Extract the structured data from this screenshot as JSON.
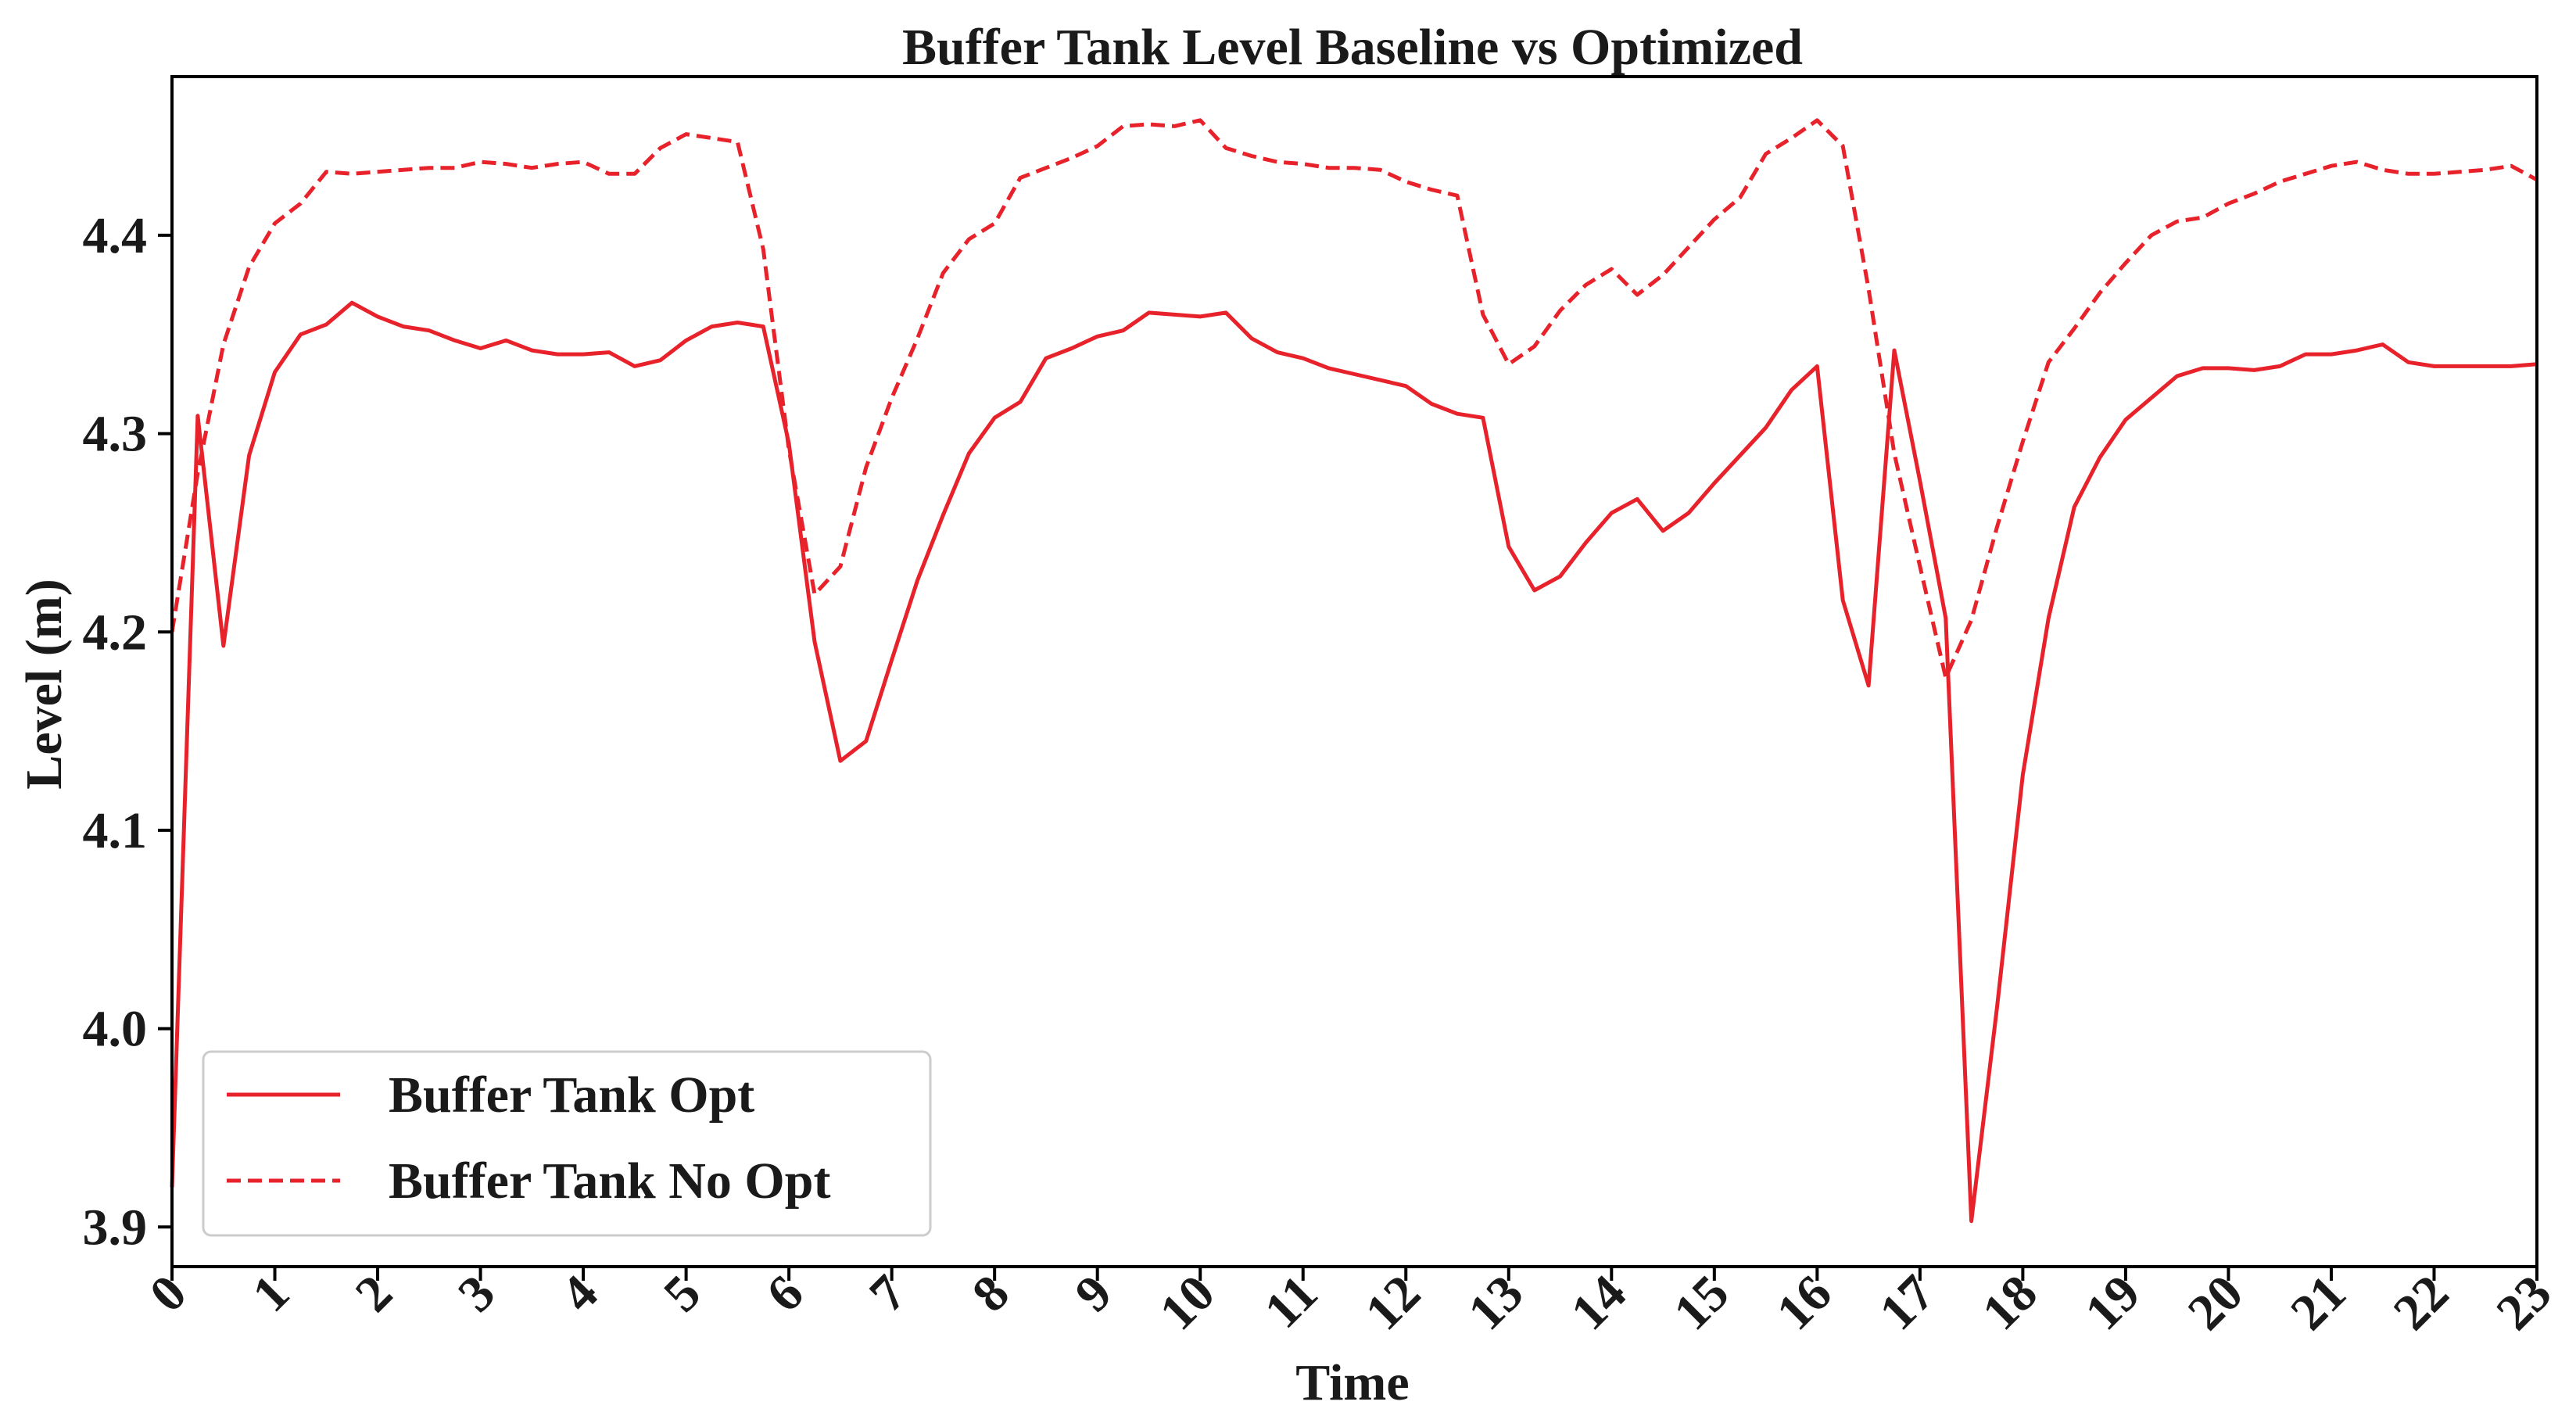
{
  "chart_data": {
    "type": "line",
    "title": "Buffer Tank Level Baseline vs Optimized",
    "xlabel": "Time",
    "ylabel": "Level (m)",
    "xlim": [
      0,
      23
    ],
    "ylim": [
      3.88,
      4.48
    ],
    "x_ticks": [
      "0",
      "1",
      "2",
      "3",
      "4",
      "5",
      "6",
      "7",
      "8",
      "9",
      "10",
      "11",
      "12",
      "13",
      "14",
      "15",
      "16",
      "17",
      "18",
      "19",
      "20",
      "21",
      "22",
      "23"
    ],
    "y_ticks": [
      "3.9",
      "4.0",
      "4.1",
      "4.2",
      "4.3",
      "4.4"
    ],
    "grid": false,
    "legend_position": "lower-left",
    "series": [
      {
        "name": "Buffer Tank Opt",
        "style": "solid",
        "color": "#e8222b",
        "x": [
          0,
          0.25,
          0.5,
          0.75,
          1,
          1.25,
          1.5,
          1.75,
          2,
          2.25,
          2.5,
          2.75,
          3,
          3.25,
          3.5,
          3.75,
          4,
          4.25,
          4.5,
          4.75,
          5,
          5.25,
          5.5,
          5.75,
          6,
          6.25,
          6.5,
          6.75,
          7,
          7.25,
          7.5,
          7.75,
          8,
          8.25,
          8.5,
          8.75,
          9,
          9.25,
          9.5,
          9.75,
          10,
          10.25,
          10.5,
          10.75,
          11,
          11.25,
          11.5,
          11.75,
          12,
          12.25,
          12.5,
          12.75,
          13,
          13.25,
          13.5,
          13.75,
          14,
          14.25,
          14.5,
          14.75,
          15,
          15.25,
          15.5,
          15.75,
          16,
          16.25,
          16.5,
          16.75,
          17,
          17.25,
          17.5,
          17.75,
          18,
          18.25,
          18.5,
          18.75,
          19,
          19.25,
          19.5,
          19.75,
          20,
          20.25,
          20.5,
          20.75,
          21,
          21.25,
          21.5,
          21.75,
          22,
          22.25,
          22.5,
          22.75,
          23
        ],
        "y": [
          3.92,
          4.309,
          4.193,
          4.289,
          4.331,
          4.35,
          4.355,
          4.366,
          4.359,
          4.354,
          4.352,
          4.347,
          4.343,
          4.347,
          4.342,
          4.34,
          4.34,
          4.341,
          4.334,
          4.337,
          4.347,
          4.354,
          4.356,
          4.354,
          4.295,
          4.195,
          4.135,
          4.145,
          4.186,
          4.226,
          4.259,
          4.29,
          4.308,
          4.316,
          4.338,
          4.343,
          4.349,
          4.352,
          4.361,
          4.36,
          4.359,
          4.361,
          4.348,
          4.341,
          4.338,
          4.333,
          4.33,
          4.327,
          4.324,
          4.315,
          4.31,
          4.308,
          4.243,
          4.221,
          4.228,
          4.245,
          4.26,
          4.267,
          4.251,
          4.26,
          4.275,
          4.289,
          4.303,
          4.322,
          4.334,
          4.216,
          4.173,
          4.342,
          4.276,
          4.207,
          3.903,
          4.011,
          4.128,
          4.207,
          4.263,
          4.288,
          4.307,
          4.318,
          4.329,
          4.333,
          4.333,
          4.332,
          4.334,
          4.34,
          4.34,
          4.342,
          4.345,
          4.336,
          4.334,
          4.334,
          4.334,
          4.334,
          4.335
        ]
      },
      {
        "name": "Buffer Tank No Opt",
        "style": "dashed",
        "color": "#e8222b",
        "x": [
          0,
          0.25,
          0.5,
          0.75,
          1,
          1.25,
          1.5,
          1.75,
          2,
          2.25,
          2.5,
          2.75,
          3,
          3.25,
          3.5,
          3.75,
          4,
          4.25,
          4.5,
          4.75,
          5,
          5.25,
          5.5,
          5.75,
          6,
          6.25,
          6.5,
          6.75,
          7,
          7.25,
          7.5,
          7.75,
          8,
          8.25,
          8.5,
          8.75,
          9,
          9.25,
          9.5,
          9.75,
          10,
          10.25,
          10.5,
          10.75,
          11,
          11.25,
          11.5,
          11.75,
          12,
          12.25,
          12.5,
          12.75,
          13,
          13.25,
          13.5,
          13.75,
          14,
          14.25,
          14.5,
          14.75,
          15,
          15.25,
          15.5,
          15.75,
          16,
          16.25,
          16.5,
          16.75,
          17,
          17.25,
          17.5,
          17.75,
          18,
          18.25,
          18.5,
          18.75,
          19,
          19.25,
          19.5,
          19.75,
          20,
          20.25,
          20.5,
          20.75,
          21,
          21.25,
          21.5,
          21.75,
          22,
          22.25,
          22.5,
          22.75,
          23
        ],
        "y": [
          4.2,
          4.28,
          4.345,
          4.384,
          4.406,
          4.416,
          4.432,
          4.431,
          4.432,
          4.433,
          4.434,
          4.434,
          4.437,
          4.436,
          4.434,
          4.436,
          4.437,
          4.431,
          4.431,
          4.444,
          4.451,
          4.449,
          4.447,
          4.393,
          4.292,
          4.219,
          4.233,
          4.283,
          4.318,
          4.348,
          4.381,
          4.398,
          4.406,
          4.429,
          4.434,
          4.439,
          4.445,
          4.455,
          4.456,
          4.455,
          4.458,
          4.444,
          4.44,
          4.437,
          4.436,
          4.434,
          4.434,
          4.433,
          4.427,
          4.423,
          4.42,
          4.36,
          4.335,
          4.344,
          4.362,
          4.375,
          4.383,
          4.37,
          4.38,
          4.394,
          4.408,
          4.419,
          4.441,
          4.449,
          4.458,
          4.445,
          4.373,
          4.29,
          4.233,
          4.177,
          4.206,
          4.253,
          4.296,
          4.336,
          4.353,
          4.371,
          4.386,
          4.4,
          4.407,
          4.409,
          4.416,
          4.421,
          4.427,
          4.431,
          4.435,
          4.437,
          4.433,
          4.431,
          4.431,
          4.432,
          4.433,
          4.435,
          4.428
        ]
      }
    ]
  }
}
